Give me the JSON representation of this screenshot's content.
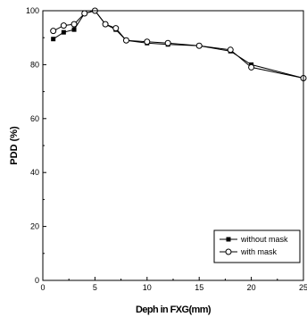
{
  "chart_data": {
    "type": "line",
    "title": "",
    "xlabel": "Deph in FXG(mm)",
    "ylabel": "PDD (%)",
    "xlim": [
      0,
      25
    ],
    "ylim": [
      0,
      100
    ],
    "xticks": [
      "0",
      "5",
      "10",
      "15",
      "20",
      "25"
    ],
    "yticks": [
      "0",
      "20",
      "40",
      "60",
      "80",
      "100"
    ],
    "grid": false,
    "legend_position": "bottom-right",
    "series": [
      {
        "name": "without mask",
        "marker": "filled-square",
        "color": "#000000",
        "x": [
          1,
          2,
          3,
          4,
          5,
          6,
          7,
          8,
          10,
          12,
          15,
          18,
          20,
          25
        ],
        "y": [
          89.5,
          92,
          93,
          99,
          100,
          95,
          93,
          89,
          88,
          87.5,
          87,
          85,
          80,
          75
        ]
      },
      {
        "name": "with mask",
        "marker": "open-circle",
        "color": "#000000",
        "x": [
          1,
          2,
          3,
          4,
          5,
          6,
          7,
          8,
          10,
          12,
          15,
          18,
          20,
          25
        ],
        "y": [
          92.5,
          94.5,
          95,
          99,
          100,
          95,
          93.5,
          89,
          88.5,
          88,
          87,
          85.5,
          79,
          75
        ]
      }
    ]
  }
}
